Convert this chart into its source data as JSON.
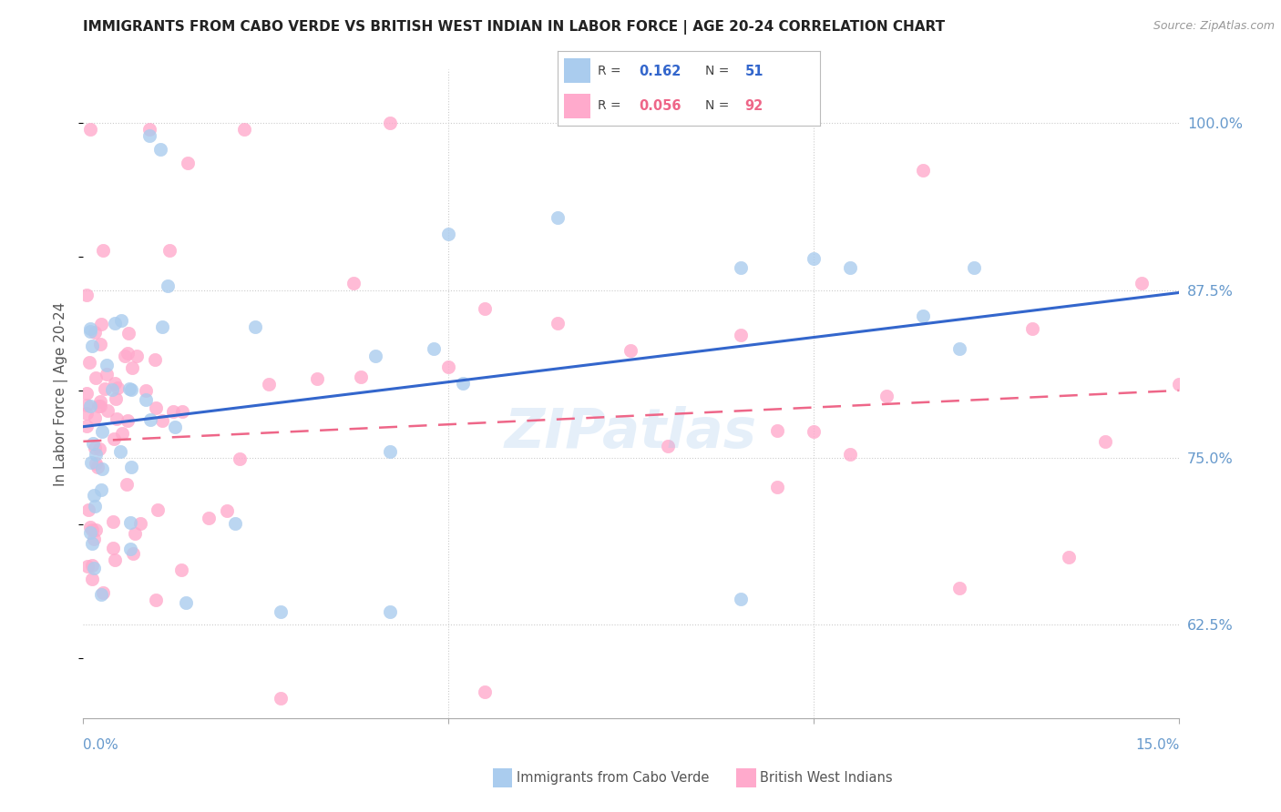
{
  "title": "IMMIGRANTS FROM CABO VERDE VS BRITISH WEST INDIAN IN LABOR FORCE | AGE 20-24 CORRELATION CHART",
  "source": "Source: ZipAtlas.com",
  "ylabel_label": "In Labor Force | Age 20-24",
  "y_ticks": [
    0.625,
    0.75,
    0.875,
    1.0
  ],
  "y_tick_labels": [
    "62.5%",
    "75.0%",
    "87.5%",
    "100.0%"
  ],
  "x_min": 0.0,
  "x_max": 0.15,
  "y_min": 0.555,
  "y_max": 1.04,
  "cabo_verde_R": 0.162,
  "cabo_verde_N": 51,
  "bwi_R": 0.056,
  "bwi_N": 92,
  "cabo_verde_color": "#aaccee",
  "bwi_color": "#ffaacc",
  "cabo_verde_line_color": "#3366cc",
  "bwi_line_color": "#ee6688",
  "legend_label_cabo": "Immigrants from Cabo Verde",
  "legend_label_bwi": "British West Indians",
  "background_color": "#ffffff",
  "grid_color": "#cccccc",
  "title_color": "#222222",
  "axis_label_color": "#6699cc",
  "cv_trend_x0": 0.0,
  "cv_trend_x1": 0.15,
  "cv_trend_y0": 0.773,
  "cv_trend_y1": 0.873,
  "bwi_trend_y0": 0.762,
  "bwi_trend_y1": 0.8
}
